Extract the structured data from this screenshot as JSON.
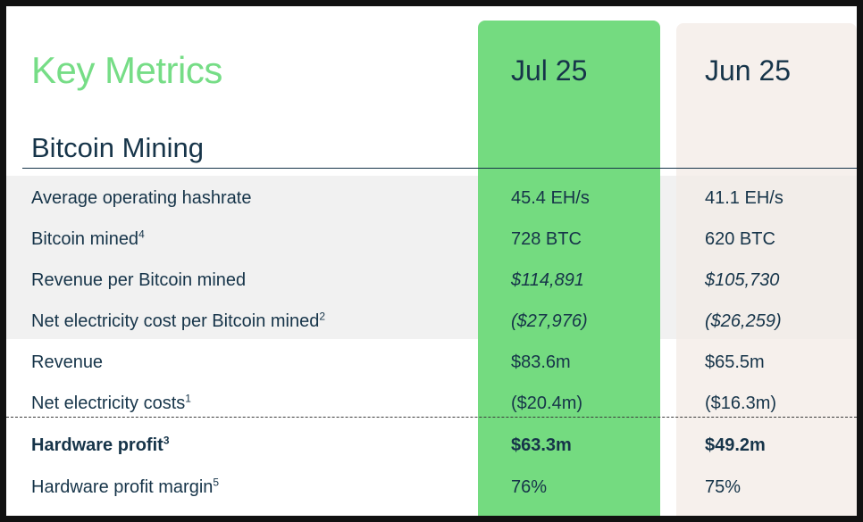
{
  "title": "Key Metrics",
  "columns": [
    "Jul 25",
    "Jun 25"
  ],
  "section": "Bitcoin Mining",
  "rows": [
    {
      "label": "Average operating hashrate",
      "sup": "",
      "jul": "45.4 EH/s",
      "jun": "41.1 EH/s"
    },
    {
      "label": "Bitcoin mined",
      "sup": "4",
      "jul": "728 BTC",
      "jun": "620 BTC"
    },
    {
      "label": "Revenue per Bitcoin mined",
      "sup": "",
      "jul": "$114,891",
      "jun": "$105,730"
    },
    {
      "label": "Net electricity cost per Bitcoin mined",
      "sup": "2",
      "jul": "($27,976)",
      "jun": "($26,259)"
    },
    {
      "label": "Revenue",
      "sup": "",
      "jul": "$83.6m",
      "jun": "$65.5m"
    },
    {
      "label": "Net electricity costs",
      "sup": "1",
      "jul": "($20.4m)",
      "jun": "($16.3m)"
    },
    {
      "label": "Hardware profit",
      "sup": "3",
      "jul": "$63.3m",
      "jun": "$49.2m"
    },
    {
      "label": "Hardware profit margin",
      "sup": "5",
      "jul": "76%",
      "jun": "75%"
    }
  ],
  "colors": {
    "accent_green": "#74db80",
    "title_green": "#76dd86",
    "navy": "#163449",
    "jun_column": "#f6f0ec",
    "shade": "#f1f1f1"
  }
}
